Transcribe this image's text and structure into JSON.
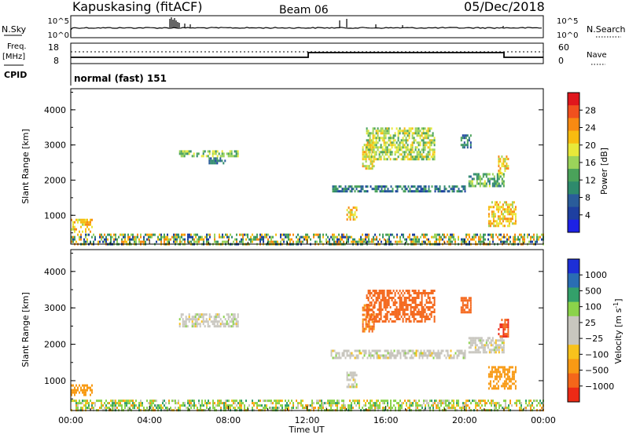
{
  "header": {
    "station": "Kapuskasing (fitACF)",
    "beam": "Beam 06",
    "date": "05/Dec/2018"
  },
  "panels": {
    "nsky": {
      "left_label": "N.Sky",
      "right_label": "N.Search",
      "left_ticks": [
        "10^5",
        "10^0"
      ],
      "right_ticks": [
        "10^5",
        "10^0"
      ]
    },
    "freq": {
      "left_label_1": "Freq.",
      "left_label_2": "[MHz]",
      "right_label": "Nave",
      "left_ticks": [
        "18",
        "8"
      ],
      "right_ticks": [
        "60",
        "0"
      ]
    },
    "cpid": {
      "label": "CPID",
      "text": "normal (fast) 151"
    }
  },
  "colorbars": {
    "power": {
      "title": "Power [dB]",
      "ticks": [
        "28",
        "24",
        "20",
        "16",
        "12",
        "8",
        "4"
      ],
      "colors": [
        "#e0161c",
        "#f1501e",
        "#f88a12",
        "#f8bc10",
        "#e8e83a",
        "#9bd35a",
        "#4aa25a",
        "#2e8a6c",
        "#2a5c9a",
        "#1e3fa0",
        "#1d21e6"
      ]
    },
    "velocity": {
      "title_main": "Velocity [m s",
      "title_sup": "-1",
      "title_end": "]",
      "ticks": [
        "1000",
        "500",
        "100",
        "25",
        "−25",
        "−100",
        "−500",
        "−1000"
      ],
      "colors": [
        "#1d2fd6",
        "#2a6db3",
        "#33a06a",
        "#8bd34a",
        "#c8c6be",
        "#c8c6be",
        "#f8c21c",
        "#f89a14",
        "#f4661a",
        "#ec2a16"
      ]
    }
  },
  "chart_data": [
    {
      "type": "heatmap",
      "title": "",
      "variable": "Power",
      "units": "dB",
      "xlabel": "Time UT",
      "ylabel": "Slant Range [km]",
      "xlim_hours": [
        0,
        24
      ],
      "ylim_km": [
        180,
        4600
      ],
      "yticks": [
        "4000",
        "3000",
        "2000",
        "1000"
      ],
      "xticks": [
        "00:00",
        "04:00",
        "08:00",
        "12:00",
        "16:00",
        "20:00",
        "00:00"
      ],
      "colorbar_range": [
        0,
        30
      ],
      "patches": [
        {
          "t0": 0.0,
          "t1": 24.0,
          "r0": 200,
          "r1": 480,
          "level": 1,
          "density": 0.55,
          "note_color_mix": "multi"
        },
        {
          "t0": 0.0,
          "t1": 1.1,
          "r0": 560,
          "r1": 900,
          "level": 20
        },
        {
          "t0": 5.5,
          "t1": 8.5,
          "r0": 2700,
          "r1": 2850,
          "level": 14
        },
        {
          "t0": 7.0,
          "t1": 7.8,
          "r0": 2450,
          "r1": 2650,
          "level": 8
        },
        {
          "t0": 13.2,
          "t1": 20.0,
          "r0": 1650,
          "r1": 1850,
          "level": 8
        },
        {
          "t0": 14.0,
          "t1": 14.5,
          "r0": 850,
          "r1": 1250,
          "level": 20
        },
        {
          "t0": 14.8,
          "t1": 15.4,
          "r0": 2350,
          "r1": 3100,
          "level": 18
        },
        {
          "t0": 15.0,
          "t1": 18.5,
          "r0": 2600,
          "r1": 3500,
          "level": 16
        },
        {
          "t0": 19.8,
          "t1": 20.3,
          "r0": 2900,
          "r1": 3300,
          "level": 8
        },
        {
          "t0": 20.2,
          "t1": 22.0,
          "r0": 1800,
          "r1": 2200,
          "level": 12
        },
        {
          "t0": 21.2,
          "t1": 22.6,
          "r0": 700,
          "r1": 1400,
          "level": 20
        },
        {
          "t0": 21.7,
          "t1": 22.2,
          "r0": 2200,
          "r1": 2700,
          "level": 20
        }
      ]
    },
    {
      "type": "heatmap",
      "title": "",
      "variable": "Velocity",
      "units": "m s-1",
      "xlabel": "Time UT",
      "ylabel": "Slant Range [km]",
      "xlim_hours": [
        0,
        24
      ],
      "ylim_km": [
        180,
        4600
      ],
      "yticks": [
        "4000",
        "3000",
        "2000",
        "1000"
      ],
      "xticks": [
        "00:00",
        "04:00",
        "08:00",
        "12:00",
        "16:00",
        "20:00",
        "00:00"
      ],
      "patches": [
        {
          "t0": 0.0,
          "t1": 24.0,
          "r0": 200,
          "r1": 480,
          "level": 100,
          "density": 0.55
        },
        {
          "t0": 0.0,
          "t1": 1.1,
          "r0": 600,
          "r1": 900,
          "level": -100
        },
        {
          "t0": 5.5,
          "t1": 8.5,
          "r0": 2500,
          "r1": 2850,
          "level": 0
        },
        {
          "t0": 13.2,
          "t1": 20.0,
          "r0": 1650,
          "r1": 1850,
          "level": 0
        },
        {
          "t0": 14.0,
          "t1": 14.5,
          "r0": 850,
          "r1": 1250,
          "level": 0
        },
        {
          "t0": 14.8,
          "t1": 15.4,
          "r0": 2350,
          "r1": 3100,
          "level": -300
        },
        {
          "t0": 15.0,
          "t1": 18.5,
          "r0": 2600,
          "r1": 3500,
          "level": -500
        },
        {
          "t0": 19.8,
          "t1": 20.3,
          "r0": 2900,
          "r1": 3300,
          "level": -500
        },
        {
          "t0": 20.2,
          "t1": 22.0,
          "r0": 1800,
          "r1": 2200,
          "level": 0
        },
        {
          "t0": 21.2,
          "t1": 22.6,
          "r0": 800,
          "r1": 1400,
          "level": -150
        },
        {
          "t0": 21.7,
          "t1": 22.2,
          "r0": 2200,
          "r1": 2700,
          "level": -700
        }
      ]
    }
  ]
}
